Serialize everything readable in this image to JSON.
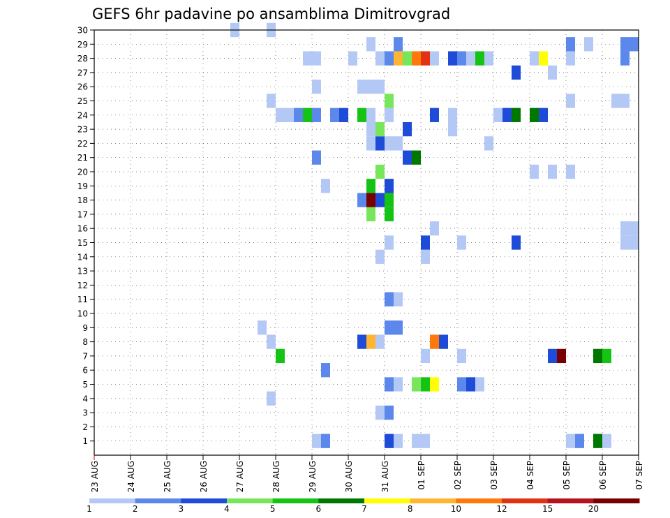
{
  "chart_data": {
    "type": "heatmap",
    "title": "GEFS 6hr padavine po ansamblima Dimitrovgrad",
    "xlabel": "",
    "ylabel": "",
    "x_ticks": [
      "23 AUG",
      "24 AUG",
      "25 AUG",
      "26 AUG",
      "27 AUG",
      "28 AUG",
      "29 AUG",
      "30 AUG",
      "31 AUG",
      "01 SEP",
      "02 SEP",
      "03 SEP",
      "04 SEP",
      "05 SEP",
      "06 SEP",
      "07 SEP"
    ],
    "y_ticks": [
      "1",
      "2",
      "3",
      "4",
      "5",
      "6",
      "7",
      "8",
      "9",
      "10",
      "11",
      "12",
      "13",
      "14",
      "15",
      "16",
      "17",
      "18",
      "19",
      "20",
      "21",
      "22",
      "23",
      "24",
      "25",
      "26",
      "27",
      "28",
      "29",
      "30"
    ],
    "grid": true,
    "colorbar_labels": [
      "1",
      "2",
      "3",
      "4",
      "5",
      "6",
      "7",
      "8",
      "10",
      "12",
      "15",
      "20"
    ],
    "colorbar_colors": [
      "#b4c8f5",
      "#5c87eb",
      "#1e4bd7",
      "#78e65a",
      "#14c314",
      "#007800",
      "#ffff00",
      "#ffb432",
      "#ff780a",
      "#e13214",
      "#b4141e",
      "#780000"
    ],
    "cells": [
      {
        "t": "29 AUG 00Z",
        "m": 1,
        "c": 1
      },
      {
        "t": "29 AUG 06Z",
        "m": 1,
        "c": 2
      },
      {
        "t": "31 AUG 00Z",
        "m": 1,
        "c": 3
      },
      {
        "t": "31 AUG 06Z",
        "m": 1,
        "c": 1
      },
      {
        "t": "31 AUG 18Z",
        "m": 1,
        "c": 1
      },
      {
        "t": "01 SEP 00Z",
        "m": 1,
        "c": 1
      },
      {
        "t": "05 SEP 00Z",
        "m": 1,
        "c": 1
      },
      {
        "t": "05 SEP 06Z",
        "m": 1,
        "c": 2
      },
      {
        "t": "05 SEP 18Z",
        "m": 1,
        "c": 6
      },
      {
        "t": "06 SEP 00Z",
        "m": 1,
        "c": 1
      },
      {
        "t": "30 AUG 18Z",
        "m": 3,
        "c": 1
      },
      {
        "t": "31 AUG 00Z",
        "m": 3,
        "c": 2
      },
      {
        "t": "27 AUG 18Z",
        "m": 4,
        "c": 1
      },
      {
        "t": "31 AUG 00Z",
        "m": 5,
        "c": 2
      },
      {
        "t": "31 AUG 06Z",
        "m": 5,
        "c": 1
      },
      {
        "t": "31 AUG 18Z",
        "m": 5,
        "c": 4
      },
      {
        "t": "01 SEP 00Z",
        "m": 5,
        "c": 5
      },
      {
        "t": "01 SEP 06Z",
        "m": 5,
        "c": 7
      },
      {
        "t": "02 SEP 00Z",
        "m": 5,
        "c": 2
      },
      {
        "t": "02 SEP 06Z",
        "m": 5,
        "c": 3
      },
      {
        "t": "02 SEP 12Z",
        "m": 5,
        "c": 1
      },
      {
        "t": "29 AUG 06Z",
        "m": 6,
        "c": 2
      },
      {
        "t": "07 SEP 00Z",
        "m": 6,
        "c": 1
      },
      {
        "t": "28 AUG 00Z",
        "m": 7,
        "c": 5
      },
      {
        "t": "01 SEP 00Z",
        "m": 7,
        "c": 1
      },
      {
        "t": "02 SEP 00Z",
        "m": 7,
        "c": 1
      },
      {
        "t": "04 SEP 12Z",
        "m": 7,
        "c": 3
      },
      {
        "t": "04 SEP 18Z",
        "m": 7,
        "c": 12
      },
      {
        "t": "05 SEP 18Z",
        "m": 7,
        "c": 6
      },
      {
        "t": "06 SEP 00Z",
        "m": 7,
        "c": 5
      },
      {
        "t": "27 AUG 18Z",
        "m": 8,
        "c": 1
      },
      {
        "t": "30 AUG 06Z",
        "m": 8,
        "c": 3
      },
      {
        "t": "30 AUG 12Z",
        "m": 8,
        "c": 8
      },
      {
        "t": "30 AUG 18Z",
        "m": 8,
        "c": 1
      },
      {
        "t": "01 SEP 06Z",
        "m": 8,
        "c": 9
      },
      {
        "t": "01 SEP 12Z",
        "m": 8,
        "c": 3
      },
      {
        "t": "27 AUG 12Z",
        "m": 9,
        "c": 1
      },
      {
        "t": "31 AUG 00Z",
        "m": 9,
        "c": 2
      },
      {
        "t": "31 AUG 06Z",
        "m": 9,
        "c": 2
      },
      {
        "t": "31 AUG 00Z",
        "m": 11,
        "c": 2
      },
      {
        "t": "31 AUG 06Z",
        "m": 11,
        "c": 1
      },
      {
        "t": "30 AUG 18Z",
        "m": 14,
        "c": 1
      },
      {
        "t": "01 SEP 00Z",
        "m": 14,
        "c": 1
      },
      {
        "t": "31 AUG 00Z",
        "m": 15,
        "c": 1
      },
      {
        "t": "01 SEP 00Z",
        "m": 15,
        "c": 3
      },
      {
        "t": "02 SEP 00Z",
        "m": 15,
        "c": 1
      },
      {
        "t": "03 SEP 12Z",
        "m": 15,
        "c": 3
      },
      {
        "t": "06 SEP 12Z",
        "m": 15,
        "c": 1
      },
      {
        "t": "06 SEP 18Z",
        "m": 15,
        "c": 1
      },
      {
        "t": "01 SEP 06Z",
        "m": 16,
        "c": 1
      },
      {
        "t": "06 SEP 12Z",
        "m": 16,
        "c": 1
      },
      {
        "t": "06 SEP 18Z",
        "m": 16,
        "c": 1
      },
      {
        "t": "30 AUG 12Z",
        "m": 17,
        "c": 4
      },
      {
        "t": "31 AUG 00Z",
        "m": 17,
        "c": 5
      },
      {
        "t": "30 AUG 06Z",
        "m": 18,
        "c": 2
      },
      {
        "t": "30 AUG 12Z",
        "m": 18,
        "c": 12
      },
      {
        "t": "30 AUG 18Z",
        "m": 18,
        "c": 3
      },
      {
        "t": "31 AUG 00Z",
        "m": 18,
        "c": 5
      },
      {
        "t": "29 AUG 06Z",
        "m": 19,
        "c": 1
      },
      {
        "t": "30 AUG 12Z",
        "m": 19,
        "c": 5
      },
      {
        "t": "31 AUG 00Z",
        "m": 19,
        "c": 3
      },
      {
        "t": "30 AUG 18Z",
        "m": 20,
        "c": 4
      },
      {
        "t": "04 SEP 00Z",
        "m": 20,
        "c": 1
      },
      {
        "t": "04 SEP 12Z",
        "m": 20,
        "c": 1
      },
      {
        "t": "05 SEP 00Z",
        "m": 20,
        "c": 1
      },
      {
        "t": "29 AUG 00Z",
        "m": 21,
        "c": 2
      },
      {
        "t": "31 AUG 12Z",
        "m": 21,
        "c": 3
      },
      {
        "t": "31 AUG 18Z",
        "m": 21,
        "c": 6
      },
      {
        "t": "07 SEP 00Z",
        "m": 21,
        "c": 1
      },
      {
        "t": "30 AUG 12Z",
        "m": 22,
        "c": 1
      },
      {
        "t": "30 AUG 18Z",
        "m": 22,
        "c": 3
      },
      {
        "t": "31 AUG 00Z",
        "m": 22,
        "c": 1
      },
      {
        "t": "31 AUG 06Z",
        "m": 22,
        "c": 1
      },
      {
        "t": "02 SEP 18Z",
        "m": 22,
        "c": 1
      },
      {
        "t": "30 AUG 12Z",
        "m": 23,
        "c": 1
      },
      {
        "t": "30 AUG 18Z",
        "m": 23,
        "c": 4
      },
      {
        "t": "31 AUG 12Z",
        "m": 23,
        "c": 3
      },
      {
        "t": "01 SEP 18Z",
        "m": 23,
        "c": 1
      },
      {
        "t": "28 AUG 00Z",
        "m": 24,
        "c": 1
      },
      {
        "t": "28 AUG 06Z",
        "m": 24,
        "c": 1
      },
      {
        "t": "28 AUG 12Z",
        "m": 24,
        "c": 2
      },
      {
        "t": "28 AUG 18Z",
        "m": 24,
        "c": 5
      },
      {
        "t": "29 AUG 00Z",
        "m": 24,
        "c": 2
      },
      {
        "t": "29 AUG 12Z",
        "m": 24,
        "c": 2
      },
      {
        "t": "29 AUG 18Z",
        "m": 24,
        "c": 3
      },
      {
        "t": "30 AUG 06Z",
        "m": 24,
        "c": 5
      },
      {
        "t": "30 AUG 12Z",
        "m": 24,
        "c": 1
      },
      {
        "t": "31 AUG 00Z",
        "m": 24,
        "c": 1
      },
      {
        "t": "01 SEP 06Z",
        "m": 24,
        "c": 3
      },
      {
        "t": "01 SEP 18Z",
        "m": 24,
        "c": 1
      },
      {
        "t": "03 SEP 00Z",
        "m": 24,
        "c": 1
      },
      {
        "t": "03 SEP 06Z",
        "m": 24,
        "c": 3
      },
      {
        "t": "03 SEP 12Z",
        "m": 24,
        "c": 6
      },
      {
        "t": "04 SEP 00Z",
        "m": 24,
        "c": 6
      },
      {
        "t": "04 SEP 06Z",
        "m": 24,
        "c": 3
      },
      {
        "t": "27 AUG 18Z",
        "m": 25,
        "c": 1
      },
      {
        "t": "31 AUG 00Z",
        "m": 25,
        "c": 4
      },
      {
        "t": "05 SEP 00Z",
        "m": 25,
        "c": 1
      },
      {
        "t": "06 SEP 06Z",
        "m": 25,
        "c": 1
      },
      {
        "t": "06 SEP 12Z",
        "m": 25,
        "c": 1
      },
      {
        "t": "29 AUG 00Z",
        "m": 26,
        "c": 1
      },
      {
        "t": "30 AUG 06Z",
        "m": 26,
        "c": 1
      },
      {
        "t": "30 AUG 12Z",
        "m": 26,
        "c": 1
      },
      {
        "t": "30 AUG 18Z",
        "m": 26,
        "c": 1
      },
      {
        "t": "03 SEP 12Z",
        "m": 27,
        "c": 3
      },
      {
        "t": "04 SEP 12Z",
        "m": 27,
        "c": 1
      },
      {
        "t": "28 AUG 18Z",
        "m": 28,
        "c": 1
      },
      {
        "t": "29 AUG 00Z",
        "m": 28,
        "c": 1
      },
      {
        "t": "30 AUG 00Z",
        "m": 28,
        "c": 1
      },
      {
        "t": "30 AUG 18Z",
        "m": 28,
        "c": 1
      },
      {
        "t": "31 AUG 00Z",
        "m": 28,
        "c": 2
      },
      {
        "t": "31 AUG 06Z",
        "m": 28,
        "c": 8
      },
      {
        "t": "31 AUG 12Z",
        "m": 28,
        "c": 4
      },
      {
        "t": "31 AUG 18Z",
        "m": 28,
        "c": 9
      },
      {
        "t": "01 SEP 00Z",
        "m": 28,
        "c": 10
      },
      {
        "t": "01 SEP 06Z",
        "m": 28,
        "c": 1
      },
      {
        "t": "01 SEP 18Z",
        "m": 28,
        "c": 3
      },
      {
        "t": "02 SEP 00Z",
        "m": 28,
        "c": 2
      },
      {
        "t": "02 SEP 06Z",
        "m": 28,
        "c": 1
      },
      {
        "t": "02 SEP 12Z",
        "m": 28,
        "c": 5
      },
      {
        "t": "02 SEP 18Z",
        "m": 28,
        "c": 1
      },
      {
        "t": "04 SEP 00Z",
        "m": 28,
        "c": 1
      },
      {
        "t": "04 SEP 06Z",
        "m": 28,
        "c": 7
      },
      {
        "t": "05 SEP 00Z",
        "m": 28,
        "c": 1
      },
      {
        "t": "06 SEP 12Z",
        "m": 28,
        "c": 2
      },
      {
        "t": "07 SEP 00Z",
        "m": 28,
        "c": 3
      },
      {
        "t": "30 AUG 12Z",
        "m": 29,
        "c": 1
      },
      {
        "t": "31 AUG 06Z",
        "m": 29,
        "c": 2
      },
      {
        "t": "05 SEP 00Z",
        "m": 29,
        "c": 2
      },
      {
        "t": "05 SEP 12Z",
        "m": 29,
        "c": 1
      },
      {
        "t": "06 SEP 12Z",
        "m": 29,
        "c": 2
      },
      {
        "t": "06 SEP 18Z",
        "m": 29,
        "c": 2
      },
      {
        "t": "26 AUG 18Z",
        "m": 30,
        "c": 1
      },
      {
        "t": "27 AUG 18Z",
        "m": 30,
        "c": 1
      }
    ]
  }
}
